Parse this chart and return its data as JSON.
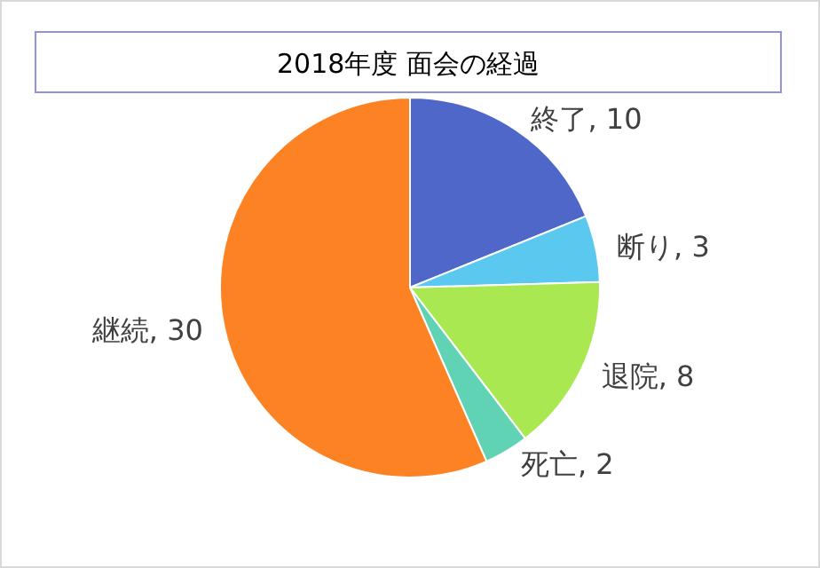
{
  "chart_data": {
    "type": "pie",
    "title": "2018年度 面会の経過",
    "categories": [
      "終了",
      "断り",
      "退院",
      "死亡",
      "継続"
    ],
    "values": [
      10,
      3,
      8,
      2,
      30
    ],
    "value_labels": [
      ", 10",
      ", 3",
      ", 8",
      ", 2",
      ", 30"
    ],
    "colors": [
      "#4f67c9",
      "#5bc8f0",
      "#a9e850",
      "#5fd3b3",
      "#fd8223"
    ]
  }
}
